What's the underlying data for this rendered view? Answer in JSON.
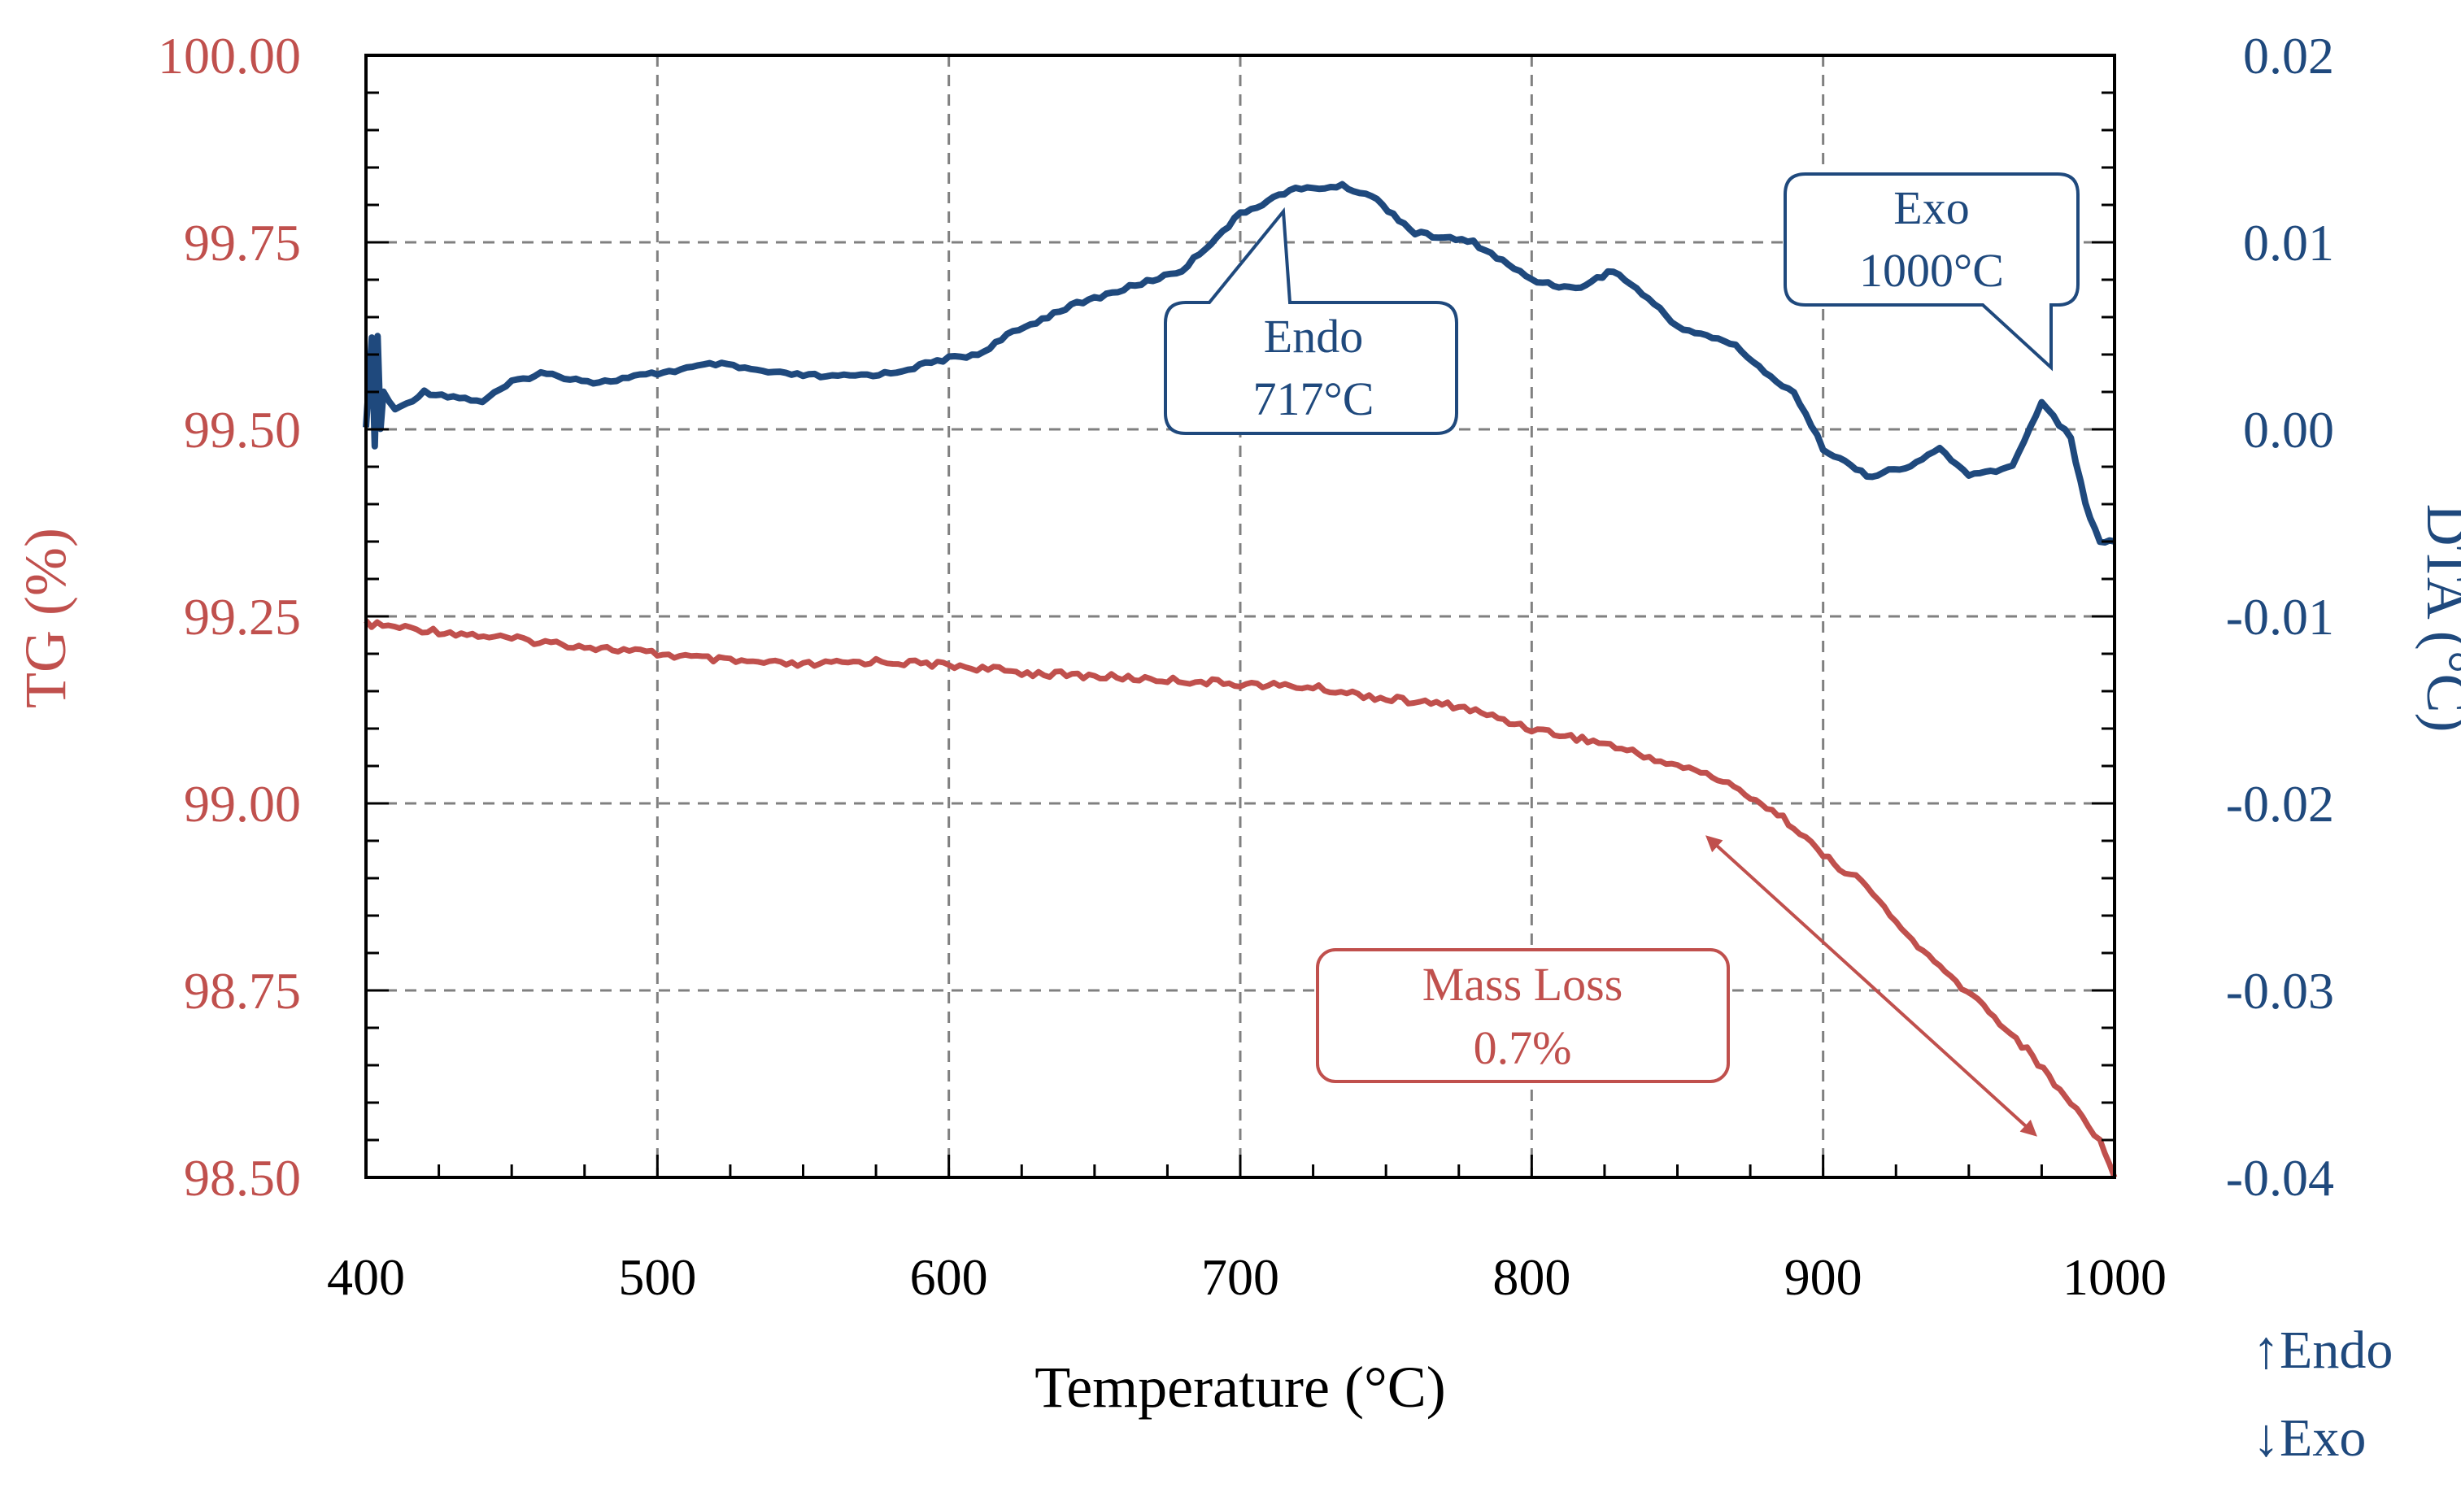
{
  "chart_data": {
    "type": "line",
    "xlabel": "Temperature (°C)",
    "ylabel_left": "TG (%)",
    "ylabel_right": "DTA (°C)",
    "xlim": [
      400,
      1000
    ],
    "ylim_left": [
      98.5,
      100.0
    ],
    "ylim_right": [
      -0.04,
      0.02
    ],
    "x_ticks": [
      "400",
      "500",
      "600",
      "700",
      "800",
      "900",
      "1000"
    ],
    "y_left_ticks": [
      "100.00",
      "99.75",
      "99.50",
      "99.25",
      "99.00",
      "98.75",
      "98.50"
    ],
    "y_right_ticks": [
      "0.02",
      "0.01",
      "0.00",
      "-0.01",
      "-0.02",
      "-0.03",
      "-0.04"
    ],
    "grid": true,
    "colors": {
      "tg": "#c0504d",
      "dta": "#1f497d"
    },
    "series": [
      {
        "name": "TG",
        "axis": "left",
        "color": "#c0504d",
        "x": [
          400,
          425,
          450,
          475,
          500,
          525,
          550,
          575,
          600,
          625,
          650,
          675,
          700,
          725,
          750,
          775,
          800,
          825,
          850,
          860,
          875,
          890,
          900,
          915,
          925,
          940,
          955,
          970,
          985,
          995,
          1000
        ],
        "values": [
          99.24,
          99.23,
          99.22,
          99.21,
          99.2,
          99.19,
          99.185,
          99.19,
          99.185,
          99.175,
          99.17,
          99.165,
          99.16,
          99.155,
          99.14,
          99.13,
          99.1,
          99.08,
          99.05,
          99.04,
          99.01,
          98.97,
          98.93,
          98.89,
          98.84,
          98.78,
          98.73,
          98.67,
          98.6,
          98.55,
          98.5
        ]
      },
      {
        "name": "DTA",
        "axis": "right",
        "color": "#1f497d",
        "x": [
          400,
          402,
          403,
          404,
          405,
          406,
          410,
          420,
          440,
          450,
          460,
          480,
          500,
          520,
          540,
          560,
          580,
          600,
          610,
          620,
          640,
          660,
          680,
          700,
          717,
          735,
          745,
          760,
          780,
          800,
          815,
          828,
          840,
          850,
          870,
          880,
          890,
          900,
          915,
          930,
          940,
          950,
          965,
          975,
          985,
          990,
          995,
          1000
        ],
        "values": [
          0.0,
          0.005,
          -0.001,
          0.005,
          0.0,
          0.002,
          0.001,
          0.002,
          0.0015,
          0.0025,
          0.003,
          0.0025,
          0.003,
          0.0035,
          0.003,
          0.0028,
          0.003,
          0.0038,
          0.004,
          0.005,
          0.0065,
          0.0075,
          0.0085,
          0.0115,
          0.0128,
          0.013,
          0.0125,
          0.0105,
          0.01,
          0.008,
          0.0075,
          0.0085,
          0.007,
          0.0055,
          0.0045,
          0.003,
          0.002,
          -0.001,
          -0.0025,
          -0.002,
          -0.001,
          -0.0025,
          -0.002,
          0.0015,
          -0.0005,
          -0.004,
          -0.006,
          -0.006
        ]
      }
    ],
    "annotations": [
      {
        "name": "endo",
        "lines": [
          "Endo",
          "717°C"
        ],
        "target_x": 717,
        "target_y_right": 0.0125
      },
      {
        "name": "exo",
        "lines": [
          "Exo",
          "1000°C"
        ],
        "target_x": 975,
        "target_y_right": 0.003
      },
      {
        "name": "mass-loss",
        "lines": [
          "Mass Loss",
          "0.7%"
        ]
      }
    ],
    "legend": [
      "↑Endo",
      "↓Exo"
    ]
  }
}
